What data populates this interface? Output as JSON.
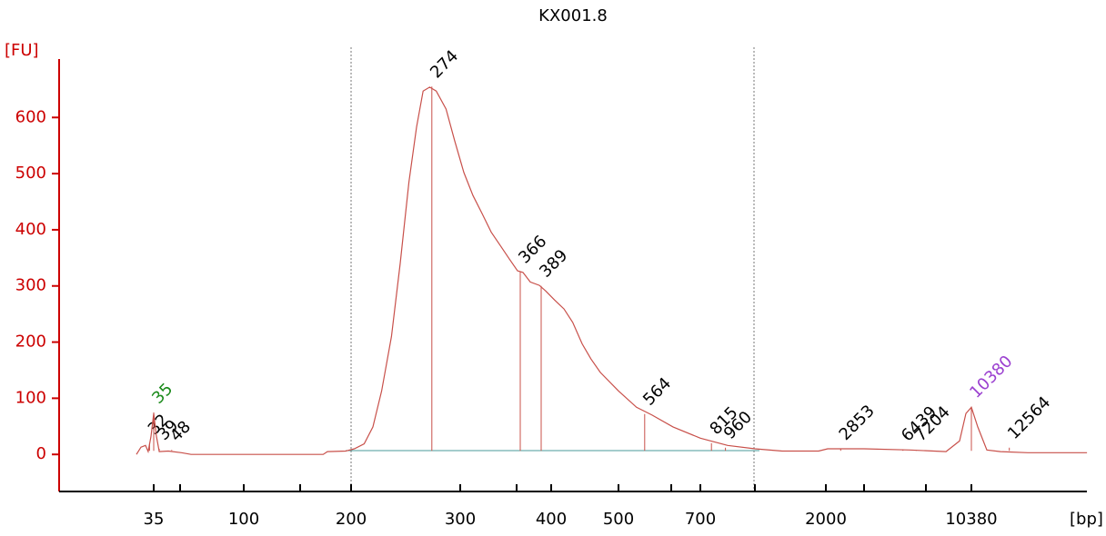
{
  "chart_data": {
    "type": "line",
    "title": "KX001.8",
    "y_label": "[FU]",
    "x_label": "[bp]",
    "axis_color": "#cc0000",
    "color": "#c8504a",
    "x": [
      22.5,
      25.8,
      29.1,
      31,
      33,
      35,
      37,
      39,
      45.5,
      55,
      62,
      174,
      178,
      195,
      203,
      212,
      220,
      228,
      237,
      245,
      253,
      260,
      266,
      272,
      278,
      287,
      295,
      304,
      314,
      324,
      334,
      344,
      354,
      363,
      369,
      377,
      387,
      394,
      405,
      419,
      432,
      446,
      459,
      473,
      500,
      544,
      582,
      633,
      700,
      983,
      1265,
      1548,
      1925,
      2105,
      4201,
      6821,
      8917,
      9699,
      10066,
      10380,
      10747,
      11271,
      12057,
      13629,
      17035
    ],
    "values": [
      0,
      13,
      16,
      5,
      32,
      73,
      32,
      5,
      6,
      3,
      0,
      0,
      5,
      6,
      10,
      19,
      49,
      113,
      210,
      340,
      485,
      583,
      647,
      654,
      647,
      615,
      558,
      502,
      461,
      429,
      396,
      372,
      348,
      327,
      324,
      307,
      301,
      291,
      275,
      259,
      235,
      197,
      170,
      146,
      113,
      84,
      70,
      49,
      29,
      16,
      10,
      6,
      6,
      10,
      10,
      8,
      5,
      24,
      73,
      84,
      49,
      8,
      5,
      3,
      3
    ],
    "ylim": [
      -66,
      704
    ],
    "yticks": [
      0,
      100,
      200,
      300,
      400,
      500,
      600
    ],
    "xticks": [
      35,
      100,
      200,
      300,
      400,
      500,
      700,
      2000,
      10380
    ],
    "peaks": [
      {
        "x": 32,
        "y": 20
      },
      {
        "x": 35,
        "y": 75,
        "color": "#1a8a1a"
      },
      {
        "x": 39,
        "y": 10
      },
      {
        "x": 48,
        "y": 8
      },
      {
        "x": 274,
        "y": 655
      },
      {
        "x": 366,
        "y": 325
      },
      {
        "x": 389,
        "y": 300
      },
      {
        "x": 564,
        "y": 72
      },
      {
        "x": 815,
        "y": 20
      },
      {
        "x": 960,
        "y": 12
      },
      {
        "x": 2853,
        "y": 10
      },
      {
        "x": 6439,
        "y": 8
      },
      {
        "x": 7204,
        "y": 8
      },
      {
        "x": 10380,
        "y": 85,
        "color": "#9b40d0"
      },
      {
        "x": 12564,
        "y": 12
      }
    ]
  }
}
